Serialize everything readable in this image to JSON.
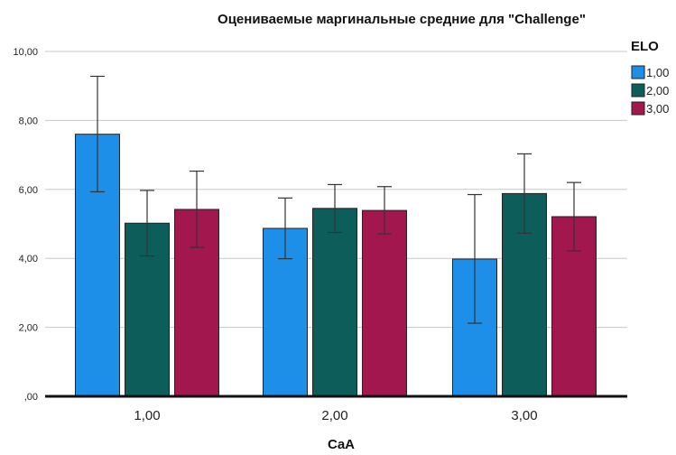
{
  "chart_data": {
    "type": "bar",
    "title": "Оцениваемые маргинальные средние для \"Challenge\"",
    "xlabel": "CaA",
    "ylabel": "",
    "categories": [
      "1,00",
      "2,00",
      "3,00"
    ],
    "ylim": [
      0,
      10
    ],
    "yticks": [
      {
        "value": 0,
        "label": ",00"
      },
      {
        "value": 2,
        "label": "2,00"
      },
      {
        "value": 4,
        "label": "4,00"
      },
      {
        "value": 6,
        "label": "6,00"
      },
      {
        "value": 8,
        "label": "8,00"
      },
      {
        "value": 10,
        "label": "10,00"
      }
    ],
    "grid": true,
    "legend": {
      "title": "ELO",
      "position": "top-right"
    },
    "series": [
      {
        "name": "1,00",
        "color": "#1e8fe8",
        "values": [
          7.6,
          4.87,
          3.98
        ],
        "err_low": [
          5.93,
          3.99,
          2.12
        ],
        "err_high": [
          9.28,
          5.75,
          5.85
        ]
      },
      {
        "name": "2,00",
        "color": "#0d5e5a",
        "values": [
          5.02,
          5.45,
          5.88
        ],
        "err_low": [
          4.07,
          4.75,
          4.73
        ],
        "err_high": [
          5.97,
          6.14,
          7.03
        ]
      },
      {
        "name": "3,00",
        "color": "#a3174f",
        "values": [
          5.42,
          5.39,
          5.21
        ],
        "err_low": [
          4.32,
          4.71,
          4.22
        ],
        "err_high": [
          6.53,
          6.08,
          6.2
        ]
      }
    ]
  }
}
